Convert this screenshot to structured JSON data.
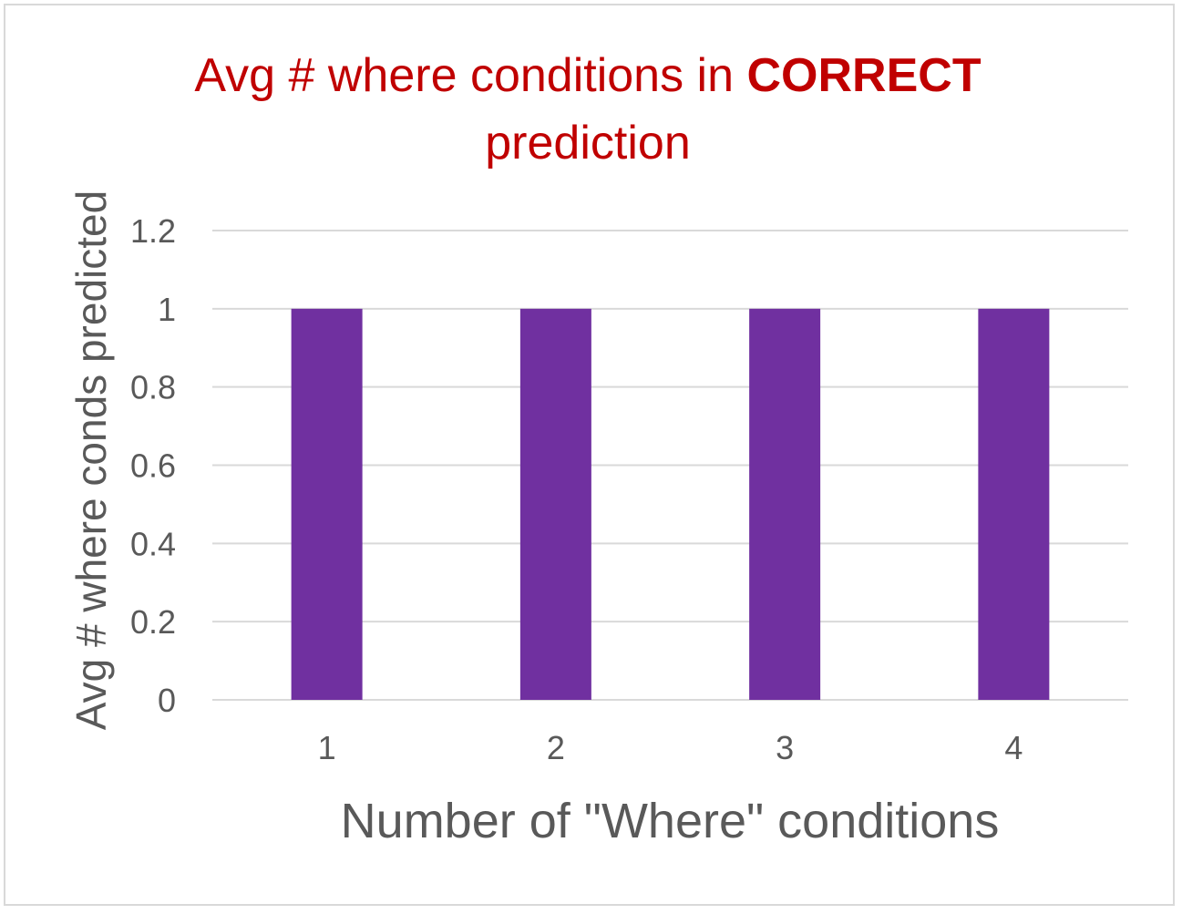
{
  "chart_data": {
    "type": "bar",
    "title": "Avg # where conditions in",
    "title_emphasis": "CORRECT",
    "title_suffix": "prediction",
    "xlabel": "Number of \"Where\" conditions",
    "ylabel": "Avg # where conds predicted",
    "categories": [
      "1",
      "2",
      "3",
      "4"
    ],
    "values": [
      1,
      1,
      1,
      1
    ],
    "ylim": [
      0,
      1.2
    ],
    "yticks": [
      "0",
      "0.2",
      "0.4",
      "0.6",
      "0.8",
      "1",
      "1.2"
    ],
    "grid": true,
    "legend": "none",
    "colors": {
      "bar": "#7030a0",
      "title": "#c00000",
      "grid": "#d9d9d9",
      "axis_text": "#595959"
    }
  }
}
